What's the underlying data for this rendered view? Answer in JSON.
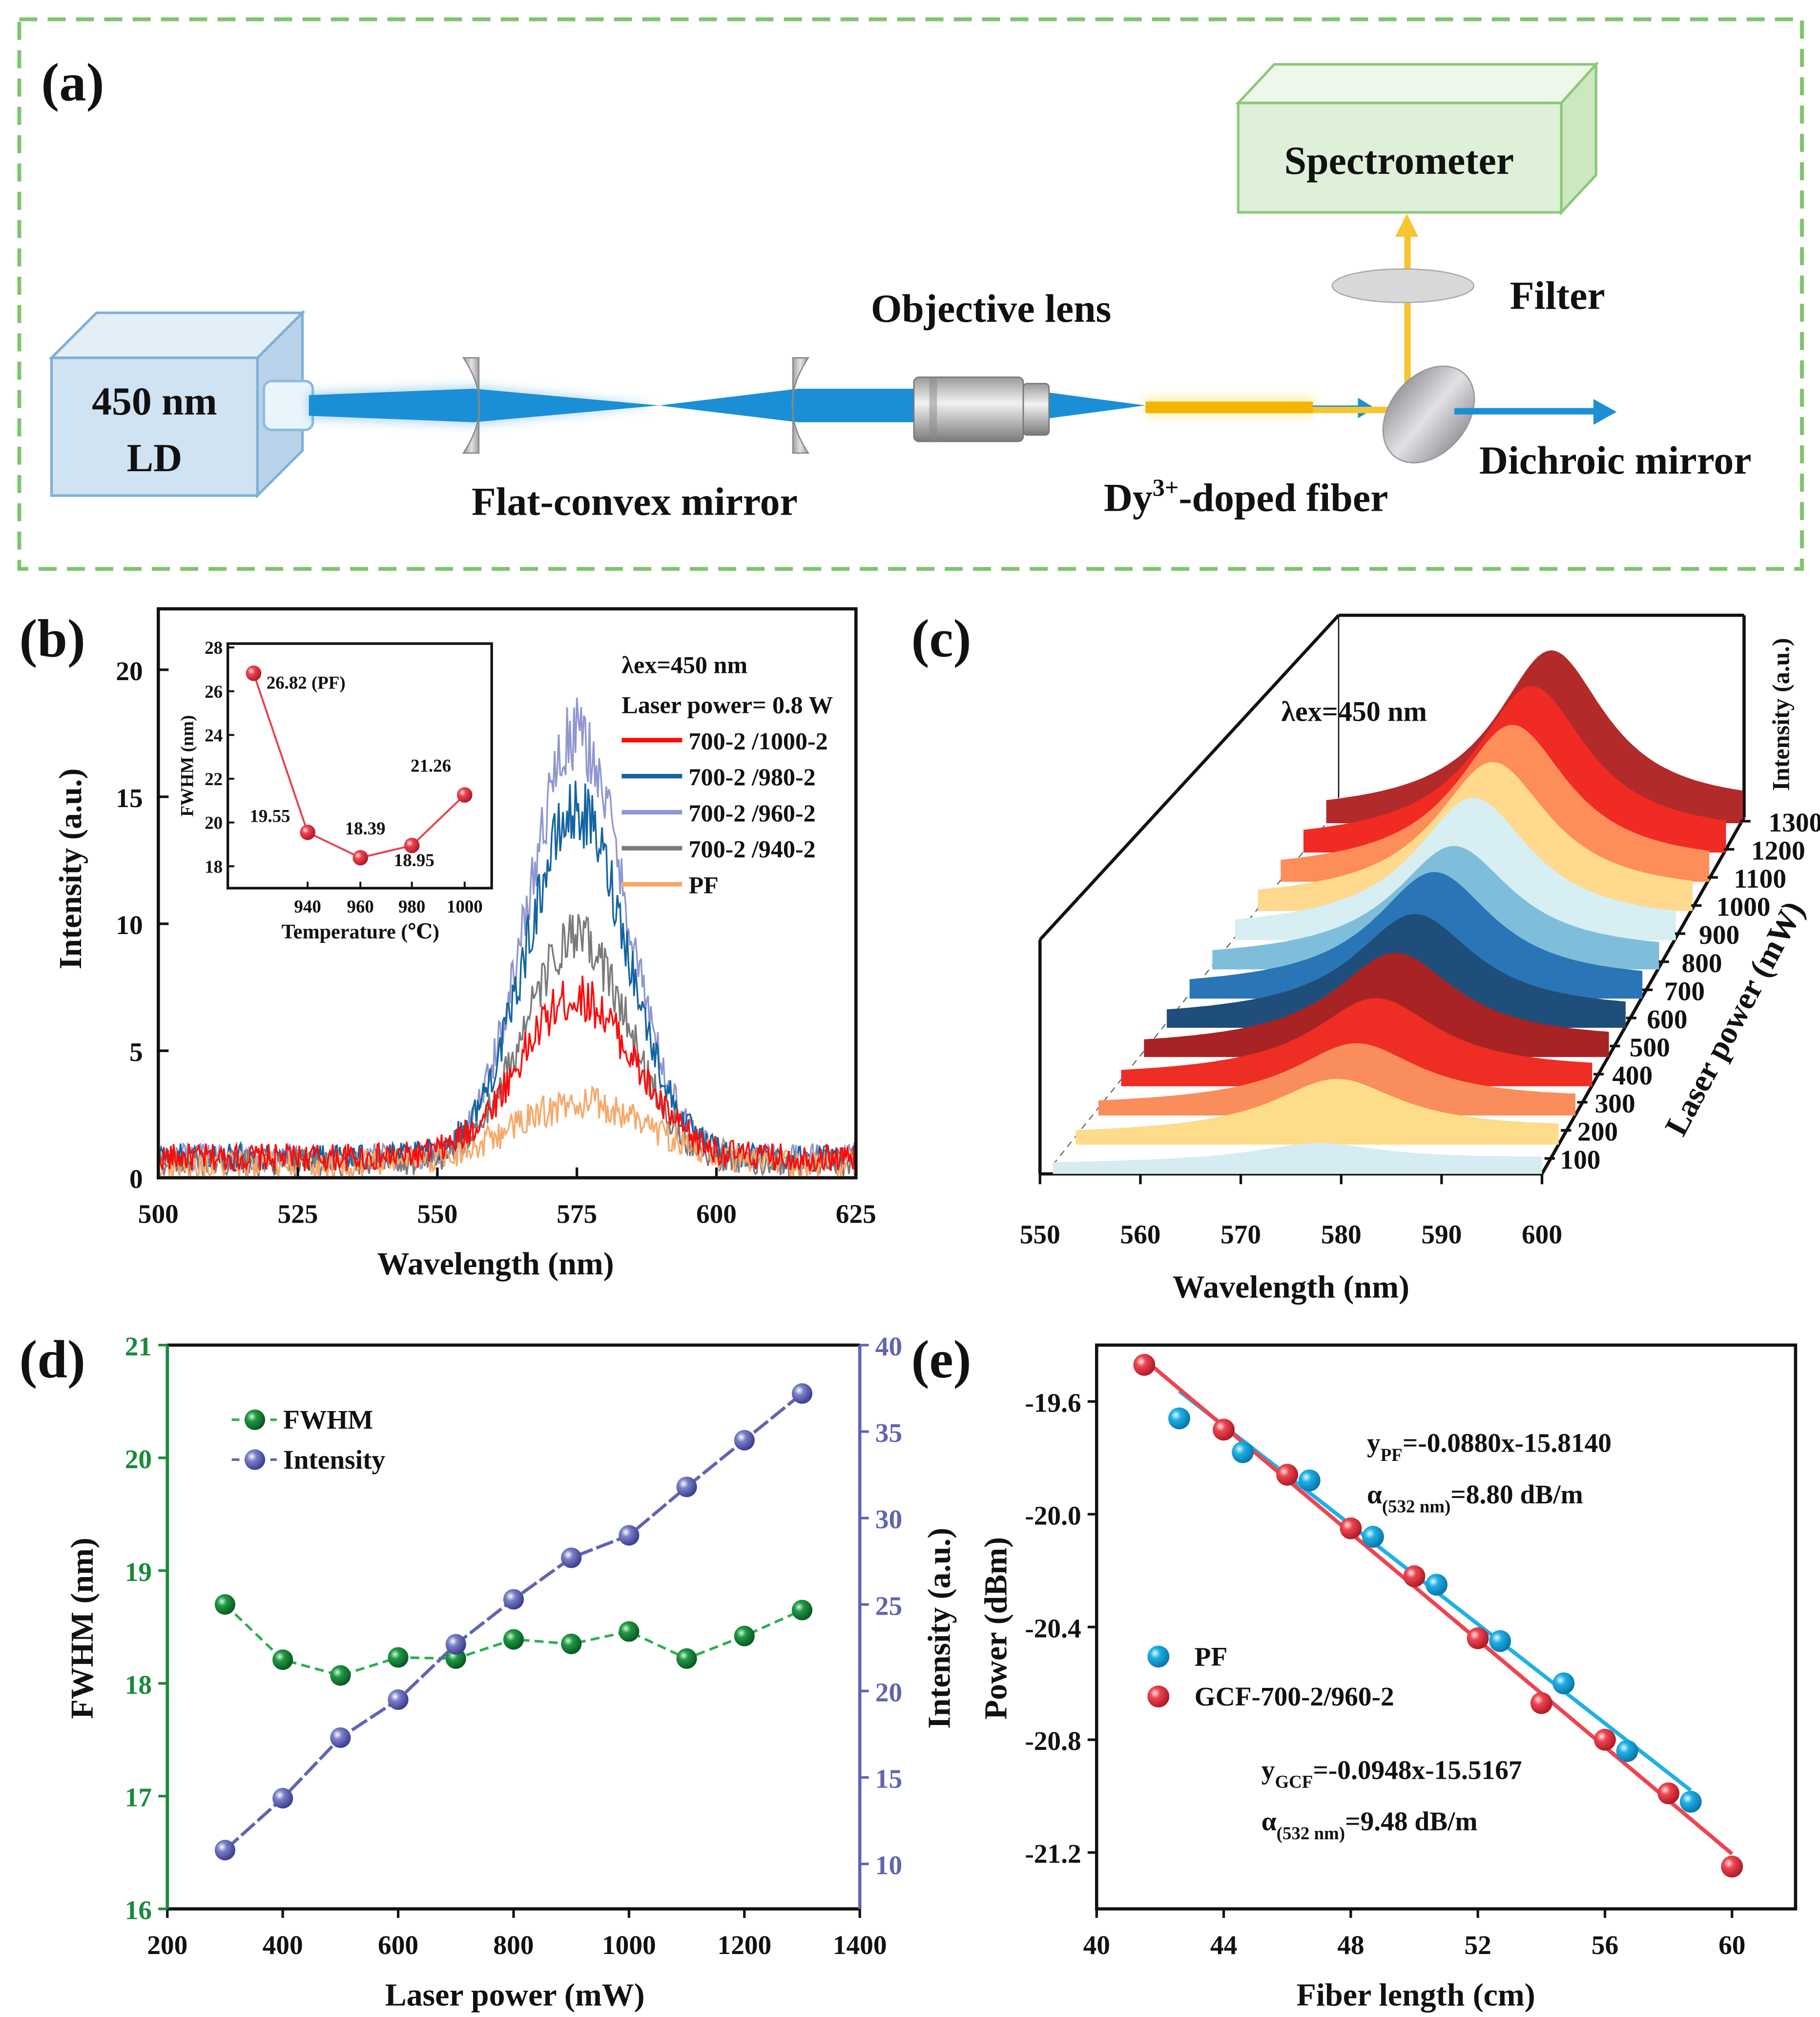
{
  "figure": {
    "panel_labels": [
      "(a)",
      "(b)",
      "(c)",
      "(d)",
      "(e)"
    ]
  },
  "schematic": {
    "source_line1": "450 nm",
    "source_line2": "LD",
    "lens_label": "Flat-convex mirror",
    "objective_label": "Objective lens",
    "fiber_label_main": "Dy",
    "fiber_label_sup": "3+",
    "fiber_label_rest": "-doped fiber",
    "filter_label": "Filter",
    "dichroic_label": "Dichroic mirror",
    "spectrometer_label": "Spectrometer",
    "colors": {
      "border": "#7cc56c",
      "beam": "#1a8fd6",
      "emission": "#f7c531",
      "ld_face": "#cfe3f3",
      "spectrometer_face": "#dff0d8"
    }
  },
  "chart_data": [
    {
      "panel": "(b)",
      "type": "line",
      "title": "",
      "xlabel": "Wavelength (nm)",
      "ylabel": "Intensity (a.u.)",
      "xlim": [
        500,
        625
      ],
      "ylim": [
        0,
        22.4
      ],
      "xticks": [
        500,
        525,
        550,
        575,
        600,
        625
      ],
      "yticks": [
        0,
        5,
        10,
        15,
        20
      ],
      "annotations": [
        "λex=450 nm",
        "Laser power= 0.8 W"
      ],
      "legend_position": "top-right",
      "series": [
        {
          "name": "700-2 /1000-2",
          "color": "#ff0a0a",
          "peak_wavelength": 575,
          "peak_intensity": 6.3,
          "fwhm_nm": 21.26,
          "baseline": 0.8
        },
        {
          "name": "700-2 /980-2",
          "color": "#1464a0",
          "peak_wavelength": 575,
          "peak_intensity": 13.6,
          "fwhm_nm": 18.95,
          "baseline": 0.8
        },
        {
          "name": "700-2 /960-2",
          "color": "#8f97d0",
          "peak_wavelength": 575,
          "peak_intensity": 16.6,
          "fwhm_nm": 18.39,
          "baseline": 0.8
        },
        {
          "name": "700-2 /940-2",
          "color": "#7a7a7a",
          "peak_wavelength": 575,
          "peak_intensity": 8.8,
          "fwhm_nm": 19.55,
          "baseline": 0.6
        },
        {
          "name": "PF",
          "color": "#f7a868",
          "peak_wavelength": 576,
          "peak_intensity": 2.4,
          "fwhm_nm": 26.82,
          "baseline": 0.5
        }
      ]
    },
    {
      "panel": "(b) inset",
      "type": "line",
      "xlabel": "Temperature (℃)",
      "ylabel": "FWHM (nm)",
      "categories": [
        "PF",
        "940",
        "960",
        "980",
        "1000"
      ],
      "xticks": [
        "940",
        "960",
        "980",
        "1000"
      ],
      "values": [
        26.82,
        19.55,
        18.39,
        18.95,
        21.26
      ],
      "point_labels": [
        "26.82 (PF)",
        "19.55",
        "18.39",
        "18.95",
        "21.26"
      ],
      "ylim": [
        17.6,
        28
      ],
      "yticks": [
        18,
        20,
        22,
        24,
        26,
        28
      ],
      "color": "#e8414f"
    },
    {
      "panel": "(c)",
      "type": "area",
      "xlabel": "Wavelength (nm)",
      "ylabel": "Laser power (mW)",
      "zlabel": "Intensity (a.u.)",
      "annotation": "λex=450 nm",
      "xlim": [
        550,
        600
      ],
      "xticks": [
        550,
        560,
        570,
        580,
        590,
        600
      ],
      "power_levels": [
        100,
        200,
        300,
        400,
        500,
        600,
        700,
        800,
        900,
        1000,
        1100,
        1200,
        1300
      ],
      "peak_wavelength": 577,
      "relative_peak_intensity": [
        0.11,
        0.33,
        0.37,
        0.47,
        0.57,
        0.63,
        0.71,
        0.69,
        0.81,
        0.85,
        0.9,
        0.96,
        1.0
      ],
      "colors": [
        "#d6ecf3",
        "#fddc8a",
        "#f98d5c",
        "#ee2d24",
        "#a82323",
        "#1f4e7a",
        "#2a75b5",
        "#7fbedb",
        "#d7eef2",
        "#fed98e",
        "#fd8d59",
        "#ef2b24",
        "#b22a2a"
      ]
    },
    {
      "panel": "(d)",
      "type": "line",
      "xlabel": "Laser power (mW)",
      "ylabel": "FWHM (nm)",
      "ylabel_right": "Intensity (a.u.)",
      "x": [
        300,
        400,
        500,
        600,
        700,
        800,
        900,
        1000,
        1100,
        1200,
        1300
      ],
      "xlim": [
        200,
        1400
      ],
      "xticks": [
        200,
        400,
        600,
        800,
        1000,
        1200,
        1400
      ],
      "ylim": [
        16,
        21
      ],
      "yticks": [
        16,
        17,
        18,
        19,
        20,
        21
      ],
      "ylim_right": [
        7.4,
        40
      ],
      "yticks_right": [
        10,
        15,
        20,
        25,
        30,
        35,
        40
      ],
      "legend_position": "top-left",
      "series": [
        {
          "name": "FWHM",
          "axis": "left",
          "color": "#1a8a3c",
          "values": [
            18.7,
            18.21,
            18.07,
            18.23,
            18.22,
            18.39,
            18.35,
            18.46,
            18.22,
            18.42,
            18.65
          ]
        },
        {
          "name": "Intensity",
          "axis": "right",
          "color": "#6064b0",
          "values": [
            10.8,
            13.8,
            17.3,
            19.5,
            22.7,
            25.3,
            27.7,
            29.0,
            31.8,
            34.5,
            37.2
          ]
        }
      ]
    },
    {
      "panel": "(e)",
      "type": "scatter",
      "xlabel": "Fiber length (cm)",
      "ylabel": "Power (dBm)",
      "xlim": [
        40,
        62
      ],
      "xticks": [
        40,
        44,
        48,
        52,
        56,
        60
      ],
      "ylim": [
        -21.4,
        -19.4
      ],
      "yticks": [
        -19.6,
        -20.0,
        -20.4,
        -20.8,
        -21.2
      ],
      "ytick_labels": [
        "-19.6",
        "-20.0",
        "-20.4",
        "-20.8",
        "-21.2"
      ],
      "legend_position": "center-left",
      "series": [
        {
          "name": "PF",
          "color": "#1fb0e6",
          "x": [
            42.6,
            44.6,
            46.7,
            48.7,
            50.7,
            52.7,
            54.7,
            56.7,
            58.7
          ],
          "y": [
            -19.66,
            -19.78,
            -19.88,
            -20.08,
            -20.25,
            -20.45,
            -20.6,
            -20.84,
            -21.02
          ],
          "fit": {
            "slope": -0.088,
            "intercept": -15.814,
            "x_range": [
              42.6,
              58.7
            ]
          }
        },
        {
          "name": "GCF-700-2/960-2",
          "color": "#ee4450",
          "x": [
            41.5,
            44,
            46,
            48,
            50,
            52,
            54,
            56,
            58,
            60
          ],
          "y": [
            -19.47,
            -19.7,
            -19.86,
            -20.05,
            -20.22,
            -20.44,
            -20.67,
            -20.8,
            -20.99,
            -21.25
          ],
          "fit": {
            "slope": -0.0948,
            "intercept": -15.5167,
            "x_range": [
              41.5,
              60
            ]
          }
        }
      ],
      "annotations": {
        "pf_eq_y": "y",
        "pf_eq_sub": "PF",
        "pf_eq_rest": "=-0.0880x-15.8140",
        "pf_alpha": "α",
        "pf_alpha_sub": "(532 nm)",
        "pf_alpha_rest": "=8.80 dB/m",
        "gcf_eq_y": "y",
        "gcf_eq_sub": "GCF",
        "gcf_eq_rest": "=-0.0948x-15.5167",
        "gcf_alpha": "α",
        "gcf_alpha_sub": "(532 nm)",
        "gcf_alpha_rest": "=9.48 dB/m"
      }
    }
  ]
}
